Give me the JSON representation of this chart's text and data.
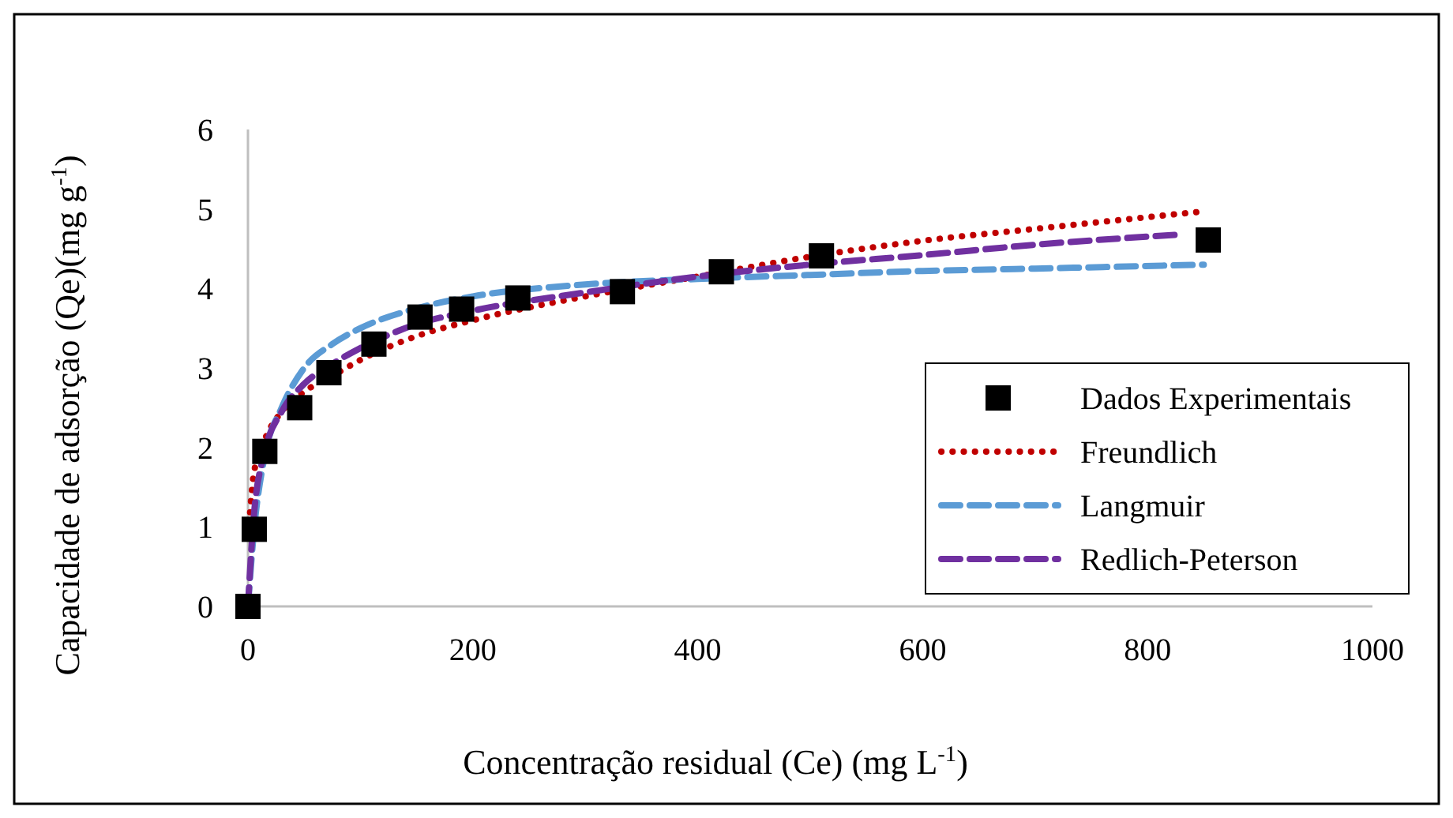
{
  "chart_data": {
    "type": "scatter",
    "xlabel": "Concentração residual (Ce) (mg L$^{-1}$)",
    "ylabel": "Capacidade de adsorção (Qe)(mg g$^{-1}$)",
    "xlim": [
      0,
      1000
    ],
    "xticks": [
      0,
      200,
      400,
      600,
      800,
      1000
    ],
    "ylim": [
      0,
      6
    ],
    "yticks": [
      0,
      1,
      2,
      3,
      4,
      5,
      6
    ],
    "grid": false,
    "legend": "right",
    "series": [
      {
        "name": "Dados Experimentais",
        "marker": "square",
        "color": "#000000",
        "x": [
          0,
          5.6,
          15,
          46,
          72,
          112,
          153,
          190,
          240,
          333,
          421,
          510,
          854
        ],
        "values": [
          0,
          0.97,
          1.95,
          2.5,
          2.94,
          3.3,
          3.64,
          3.74,
          3.88,
          3.96,
          4.21,
          4.41,
          4.61
        ]
      },
      {
        "name": "Freundlich",
        "type": "line",
        "line_style": "dotted",
        "color": "#c00000",
        "x": [
          0.5,
          5,
          15,
          30,
          50,
          75,
          100,
          150,
          200,
          300,
          400,
          500,
          600,
          700,
          850
        ],
        "values": [
          0.9,
          1.65,
          2.1,
          2.45,
          2.7,
          2.9,
          3.1,
          3.4,
          3.6,
          3.9,
          4.15,
          4.4,
          4.6,
          4.75,
          4.97
        ]
      },
      {
        "name": "Langmuir",
        "type": "line",
        "line_style": "dashed",
        "color": "#5b9bd5",
        "x": [
          0,
          5,
          15,
          30,
          50,
          75,
          100,
          150,
          200,
          300,
          400,
          500,
          600,
          700,
          850
        ],
        "values": [
          0,
          0.9,
          1.9,
          2.5,
          3.0,
          3.3,
          3.5,
          3.75,
          3.9,
          4.05,
          4.12,
          4.17,
          4.22,
          4.25,
          4.3
        ]
      },
      {
        "name": "Redlich-Peterson",
        "type": "line",
        "line_style": "dashed",
        "color": "#7030a0",
        "x": [
          0,
          5,
          15,
          30,
          50,
          75,
          100,
          150,
          200,
          300,
          400,
          500,
          600,
          700,
          830
        ],
        "values": [
          0,
          1.1,
          1.95,
          2.45,
          2.8,
          3.05,
          3.25,
          3.55,
          3.72,
          3.95,
          4.15,
          4.3,
          4.42,
          4.55,
          4.68
        ]
      }
    ]
  }
}
